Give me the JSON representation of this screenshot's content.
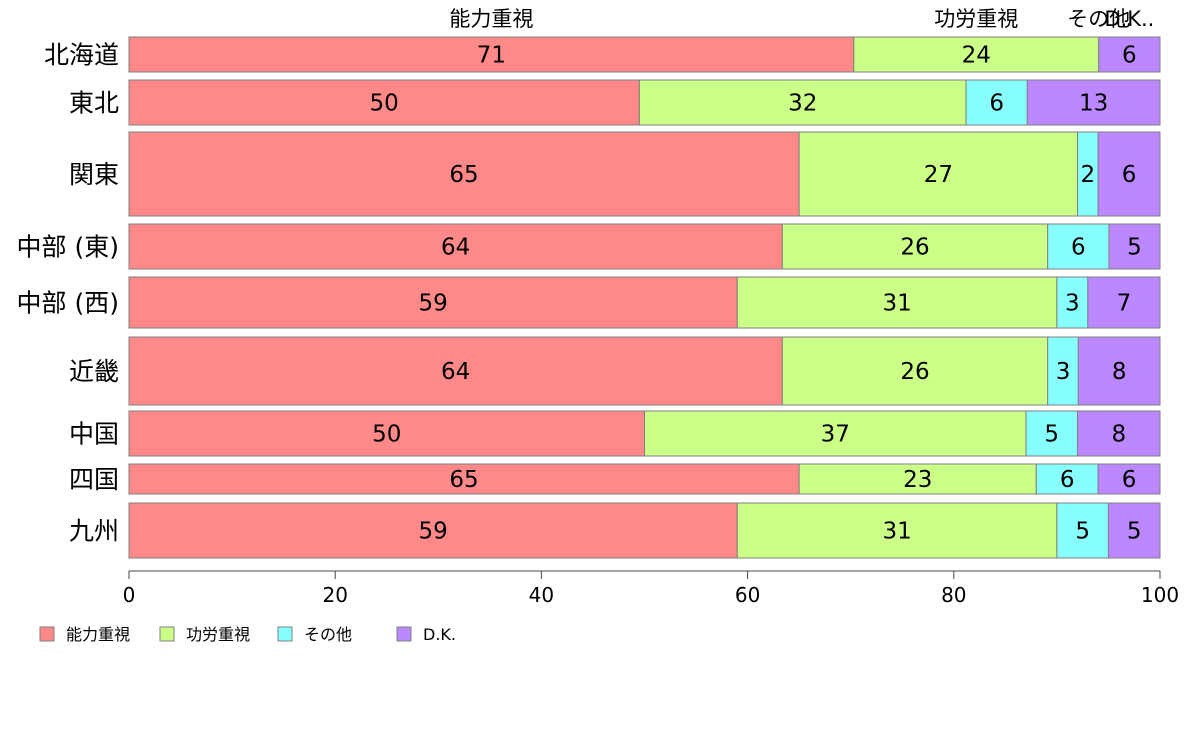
{
  "chart_data": {
    "type": "bar",
    "orientation": "horizontal",
    "stacked": true,
    "categories": [
      "北海道",
      "東北",
      "関東",
      "中部 (東)",
      "中部 (西)",
      "近畿",
      "中国",
      "四国",
      "九州"
    ],
    "series": [
      {
        "name": "能力重視",
        "color": "#ff8888",
        "values": [
          71,
          50,
          65,
          64,
          59,
          64,
          50,
          65,
          59
        ]
      },
      {
        "name": "功労重視",
        "color": "#ccff88",
        "values": [
          24,
          32,
          27,
          26,
          31,
          26,
          37,
          23,
          31
        ]
      },
      {
        "name": "その他",
        "color": "#88ffff",
        "values": [
          0,
          6,
          2,
          6,
          3,
          3,
          5,
          6,
          5
        ]
      },
      {
        "name": "D.K.",
        "color": "#bb88ff",
        "values": [
          6,
          13,
          6,
          5,
          7,
          8,
          8,
          6,
          5
        ]
      }
    ],
    "value_labels": [
      [
        "71",
        "24",
        "",
        "6"
      ],
      [
        "50",
        "32",
        "6",
        "13"
      ],
      [
        "65",
        "27",
        "2",
        "6"
      ],
      [
        "64",
        "26",
        "6",
        "5"
      ],
      [
        "59",
        "31",
        "3",
        "7"
      ],
      [
        "64",
        "26",
        "3",
        "8"
      ],
      [
        "50",
        "37",
        "5",
        "8"
      ],
      [
        "65",
        "23",
        "6",
        "6"
      ],
      [
        "59",
        "31",
        "5",
        "5"
      ]
    ],
    "top_labels": [
      "能力重視",
      "功労重視",
      "その他",
      "D.K.."
    ],
    "x_ticks": [
      0,
      20,
      40,
      60,
      80,
      100
    ],
    "xlim": [
      0,
      100
    ],
    "legend": {
      "position": "bottom-left",
      "entries": [
        "能力重視",
        "功労重視",
        "その他",
        "D.K."
      ]
    },
    "grid": false
  }
}
